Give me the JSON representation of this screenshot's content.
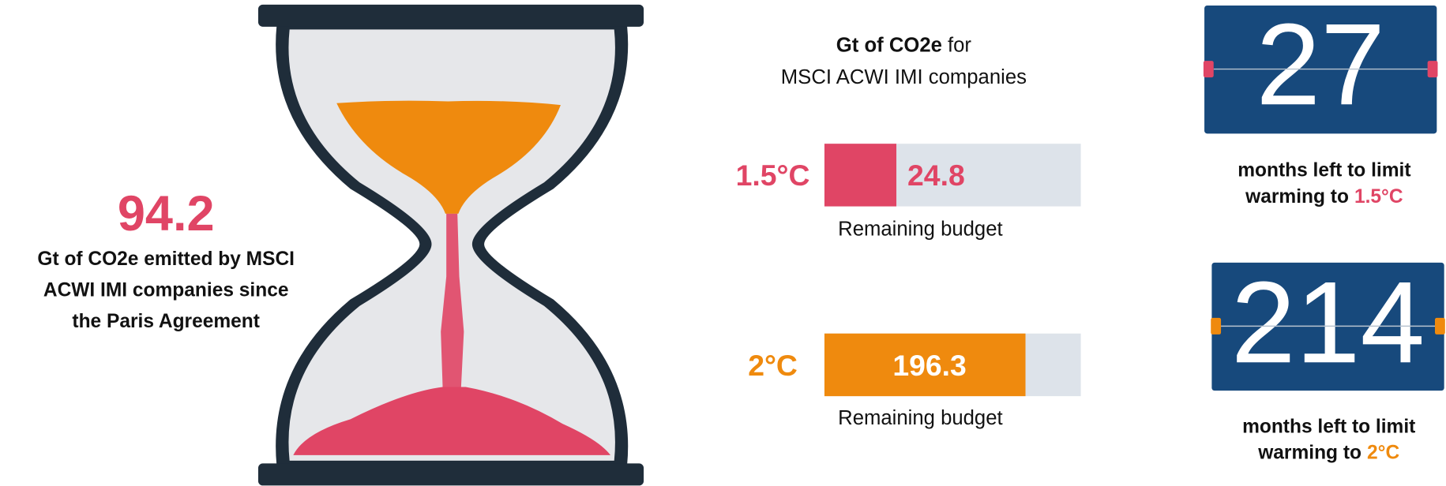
{
  "left_stat": {
    "value": "94.2",
    "caption": [
      "Gt of CO2e emitted by MSCI",
      "ACWI IMI companies since",
      "the Paris Agreement"
    ]
  },
  "header": {
    "bold": "Gt of CO2e",
    "rest": "for",
    "line2": "MSCI ACWI IMI companies"
  },
  "budgets": [
    {
      "label": "1.5°C",
      "value": "24.8",
      "caption": "Remaining budget"
    },
    {
      "label": "2°C",
      "value": "196.3",
      "caption": "Remaining budget"
    }
  ],
  "counters": [
    {
      "value": "27",
      "line1": "months left to limit",
      "line2": "warming to",
      "highlight": "1.5°C"
    },
    {
      "value": "214",
      "line1": "months left to limit",
      "line2": "warming to",
      "highlight": "2°C"
    }
  ]
}
